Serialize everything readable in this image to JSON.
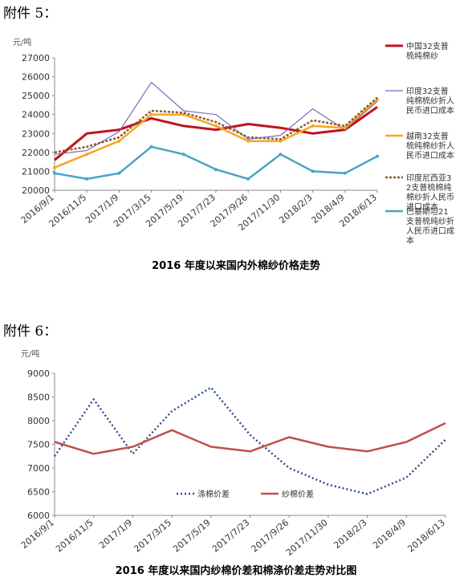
{
  "page": {
    "attachment5": "附件 5：",
    "attachment6": "附件 6："
  },
  "chart_data": [
    {
      "type": "line",
      "title": "2016 年度以来国内外棉纱价格走势",
      "unit": "元/吨",
      "x": [
        "2016/9/1",
        "2016/11/5",
        "2017/1/9",
        "2017/3/15",
        "2017/5/19",
        "2017/7/23",
        "2017/9/26",
        "2017/11/30",
        "2018/2/3",
        "2018/4/9",
        "2018/6/13"
      ],
      "ylim": [
        20000,
        27000
      ],
      "yticks": [
        20000,
        21000,
        22000,
        23000,
        24000,
        25000,
        26000,
        27000
      ],
      "legend_position": "right",
      "series": [
        {
          "name": "中国32支普梳纯棉纱",
          "color": "#c0111f",
          "values": [
            21600,
            23000,
            23200,
            23800,
            23400,
            23200,
            23500,
            23300,
            23000,
            23200,
            24400
          ]
        },
        {
          "name": "印度32支普纯棉梳纱折人民币进口成本",
          "color": "#7b68b6",
          "values": [
            21900,
            22100,
            23100,
            25700,
            24200,
            24000,
            22700,
            22900,
            24300,
            23200,
            24700
          ]
        },
        {
          "name": "越南32支普梳纯棉纱折人民币进口成本",
          "color": "#f5a623",
          "values": [
            21200,
            21900,
            22600,
            24000,
            24000,
            23400,
            22600,
            22600,
            23400,
            23300,
            24800
          ]
        },
        {
          "name": "印度尼西亚32支普梳棉纯棉纱折人民币进口成本",
          "color": "#8b5a2b",
          "values": [
            22000,
            22300,
            22800,
            24200,
            24100,
            23600,
            22800,
            22700,
            23700,
            23400,
            24900
          ]
        },
        {
          "name": "巴基斯坦21支普梳纯纱折人民币进口成本",
          "color": "#4aa3c8",
          "values": [
            20900,
            20600,
            20900,
            22300,
            21900,
            21100,
            20600,
            21900,
            21000,
            20900,
            21800
          ]
        }
      ]
    },
    {
      "type": "line",
      "title": "2016 年度以来国内纱棉价差和棉涤价差走势对比图",
      "unit": "元/吨",
      "x": [
        "2016/9/1",
        "2016/11/5",
        "2017/1/9",
        "2017/3/15",
        "2017/5/19",
        "2017/7/23",
        "2017/9/26",
        "2017/11/30",
        "2018/2/3",
        "2018/4/9",
        "2018/6/13"
      ],
      "ylim": [
        6000,
        9000
      ],
      "yticks": [
        6000,
        6500,
        7000,
        7500,
        8000,
        8500,
        9000
      ],
      "legend_position": "bottom",
      "series": [
        {
          "name": "涤棉价差",
          "color": "#2e4d8f",
          "values": [
            7250,
            8450,
            7300,
            8200,
            8700,
            7700,
            7000,
            6650,
            6450,
            6800,
            7600
          ]
        },
        {
          "name": "纱棉价差",
          "color": "#c0504d",
          "values": [
            7550,
            7300,
            7450,
            7800,
            7450,
            7350,
            7650,
            7450,
            7350,
            7550,
            7950
          ]
        }
      ]
    }
  ]
}
